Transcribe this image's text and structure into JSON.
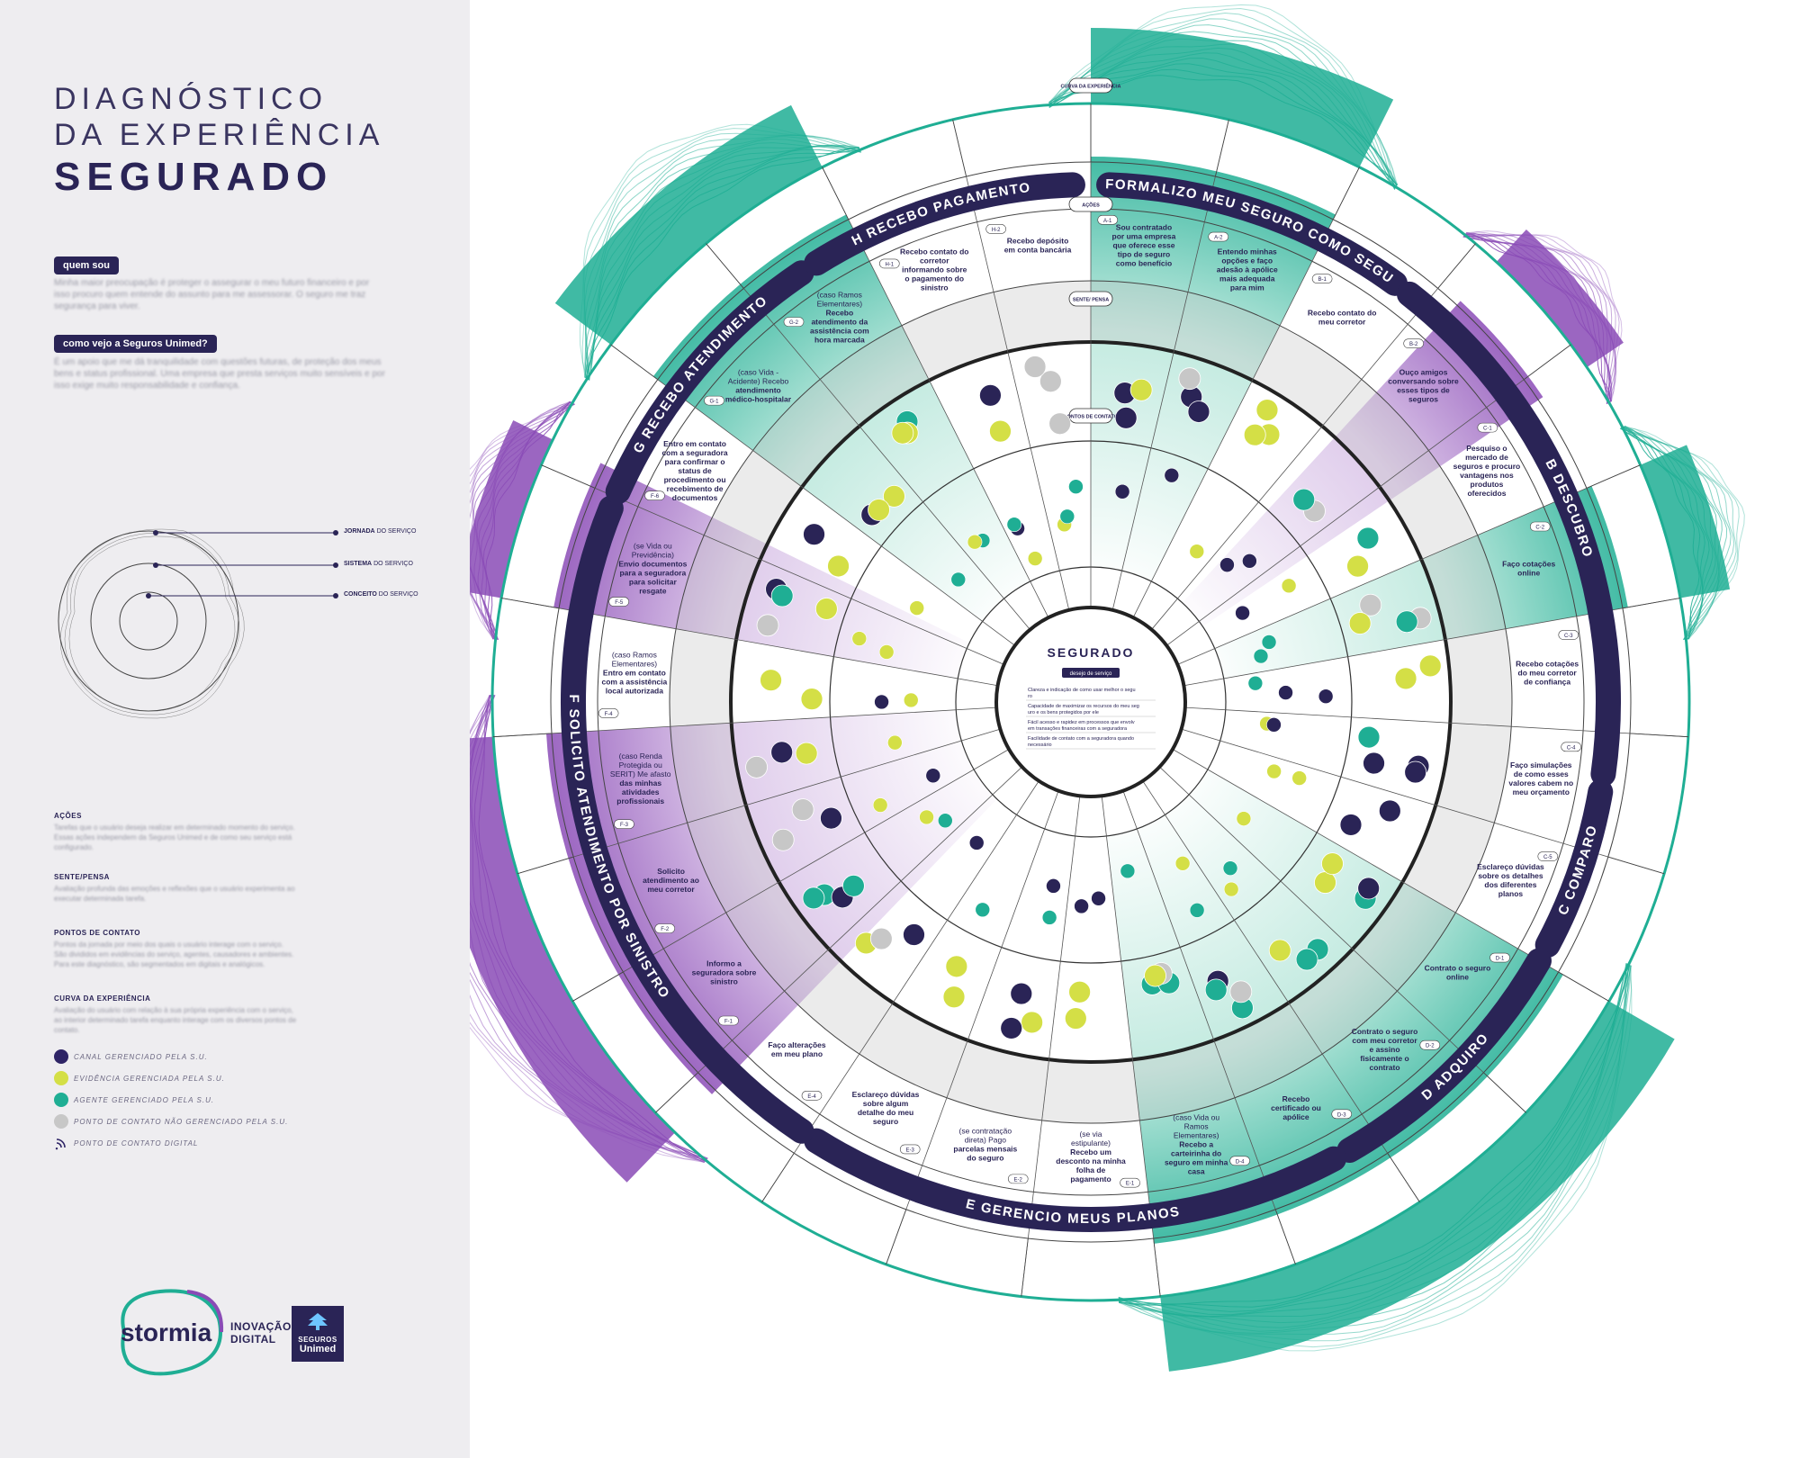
{
  "title": {
    "line1": "DIAGNÓSTICO",
    "line2": "DA EXPERIÊNCIA",
    "line3": "SEGURADO"
  },
  "sidebar": {
    "q1": "quem sou",
    "q1_text": "Minha maior preocupação é proteger o assegurar o meu futuro financeiro e por isso procuro quem entende do assunto para me assessorar. O seguro me traz segurança para viver.",
    "q2": "como vejo a Seguros Unimed?",
    "q2_text": "É um apoio que me dá tranquilidade com questões futuras, de proteção dos meus bens e status profissional. Uma empresa que presta serviços muito sensíveis e por isso exige muito responsabilidade e confiança.",
    "mini_labels": [
      {
        "bold": "JORNADA",
        "rest": " DO SERVIÇO"
      },
      {
        "bold": "SISTEMA",
        "rest": " DO SERVIÇO"
      },
      {
        "bold": "CONCEITO",
        "rest": " DO SERVIÇO"
      }
    ],
    "sections": [
      {
        "h": "AÇÕES",
        "p": "Tarefas que o usuário deseja realizar em determinado momento do serviço. Essas ações independem da Seguros Unimed e de como seu serviço está configurado."
      },
      {
        "h": "SENTE/PENSA",
        "p": "Avaliação profunda das emoções e reflexões que o usuário experimenta ao executar determinada tarefa."
      },
      {
        "h": "PONTOS DE CONTATO",
        "p": "Pontos da jornada por meio dos quais o usuário interage com o serviço. São divididos em evidências do serviço, agentes, causadores e ambientes. Para este diagnóstico, são segmentados em digitais e analógicos."
      },
      {
        "h": "CURVA DA EXPERIÊNCIA",
        "p": "Avaliação do usuário com relação à sua própria experiência com o serviço, ao interior determinado tarefa enquanto interage com os diversos pontos de contato."
      }
    ],
    "legend": [
      {
        "label": "CANAL GERENCIADO PELA S.U.",
        "color": "#2e2466"
      },
      {
        "label": "EVIDÊNCIA GERENCIADA PELA S.U.",
        "color": "#d4df46"
      },
      {
        "label": "AGENTE GERENCIADO PELA S.U.",
        "color": "#1fae94"
      },
      {
        "label": "PONTO DE CONTATO NÃO GERENCIADO PELA S.U.",
        "color": "#c7c7c7"
      },
      {
        "label": "PONTO DE CONTATO DIGITAL",
        "color": "#2e2466"
      }
    ]
  },
  "logos": {
    "stormia": "stormia",
    "inovacao": "INOVAÇÃO",
    "digital": "DIGITAL",
    "seguros": "SEGUROS",
    "unimed": "Unimed"
  },
  "diagram": {
    "center_title": "SEGURADO",
    "center_sub": "desejo de serviço",
    "center_items": [
      "Clareza e indicação de como usar melhor o seguro",
      "Capacidade de maximizar os recursos do meu seguro e os bens protegidos por ele",
      "Fácil acesso e rapidez em processos que envolvem transações financeiras com a seguradora",
      "Facilidade de contato com a seguradora quando necessário"
    ],
    "ring_labels": [
      "CURVA DA EXPERIÊNCIA",
      "AÇÕES",
      "SENTE/ PENSA",
      "PONTOS DE CONTATO"
    ],
    "phases": [
      {
        "letter": "A",
        "name": "FORMALIZO MEU SEGURO COMO SEGURO"
      },
      {
        "letter": "B",
        "name": "DESCUBRO"
      },
      {
        "letter": "C",
        "name": "COMPARO"
      },
      {
        "letter": "D",
        "name": "ADQUIRO"
      },
      {
        "letter": "E",
        "name": "GERENCIO MEUS PLANOS"
      },
      {
        "letter": "F",
        "name": "SOLICITO ATENDIMENTO POR SINISTRO"
      },
      {
        "letter": "G",
        "name": "RECEBO ATENDIMENTO"
      },
      {
        "letter": "H",
        "name": "RECEBO PAGAMENTO"
      }
    ],
    "actions": [
      {
        "code": "A-1",
        "text": "Sou contratado por uma empresa que oferece esse tipo de seguro como benefício"
      },
      {
        "code": "A-2",
        "text": "Entendo minhas opções e faço adesão à apólice mais adequada para mim"
      },
      {
        "code": "B-1",
        "text": "Recebo contato do meu corretor"
      },
      {
        "code": "B-2",
        "text": "Ouço amigos conversando sobre esses tipos de seguros"
      },
      {
        "code": "C-1",
        "text": "Pesquiso o mercado de seguros e procuro vantagens nos produtos oferecidos"
      },
      {
        "code": "C-2",
        "text": "Faço cotações online"
      },
      {
        "code": "C-3",
        "text": "Recebo cotações do meu corretor de confiança"
      },
      {
        "code": "C-4",
        "text": "Faço simulações de como esses valores cabem no meu orçamento"
      },
      {
        "code": "C-5",
        "text": "Esclareço dúvidas sobre os detalhes dos diferentes planos"
      },
      {
        "code": "D-1",
        "text": "Contrato o seguro online"
      },
      {
        "code": "D-2",
        "text": "Contrato o seguro com meu corretor e assino fisicamente o contrato"
      },
      {
        "code": "D-3",
        "text": "Recebo certificado ou apólice"
      },
      {
        "code": "D-4",
        "text": "(caso Vida ou Ramos Elementares) Recebo a carteirinha do seguro em minha casa"
      },
      {
        "code": "E-1",
        "text": "(se via estipulante) Recebo um desconto na minha folha de pagamento"
      },
      {
        "code": "E-2",
        "text": "(se contratação direta) Pago parcelas mensais do seguro"
      },
      {
        "code": "E-3",
        "text": "Esclareço dúvidas sobre algum detalhe do meu seguro"
      },
      {
        "code": "E-4",
        "text": "Faço alterações em meu plano"
      },
      {
        "code": "F-1",
        "text": "Informo a seguradora sobre sinistro"
      },
      {
        "code": "F-2",
        "text": "Solicito atendimento ao meu corretor"
      },
      {
        "code": "F-3",
        "text": "(caso Renda Protegida ou SERIT) Me afasto das minhas atividades profissionais"
      },
      {
        "code": "F-4",
        "text": "(caso Ramos Elementares) Entro em contato com a assistência local autorizada"
      },
      {
        "code": "F-5",
        "text": "(se Vida ou Previdência) Envio documentos para a seguradora para solicitar resgate"
      },
      {
        "code": "F-6",
        "text": "Entro em contato com a seguradora para confirmar o status de procedimento ou recebimento de documentos"
      },
      {
        "code": "G-1",
        "text": "(caso Vida - Acidente) Recebo atendimento médico-hospitalar"
      },
      {
        "code": "G-2",
        "text": "(caso Ramos Elementares) Recebo atendimento da assistência com hora marcada"
      },
      {
        "code": "H-1",
        "text": "Recebo contato do corretor informando sobre o pagamento do sinistro"
      },
      {
        "code": "H-2",
        "text": "Recebo depósito em conta bancária"
      }
    ]
  },
  "colors": {
    "navy": "#2a2456",
    "teal": "#1fae94",
    "purple": "#8a4bb6",
    "lime": "#d4df46",
    "gray": "#c7c7c7"
  }
}
